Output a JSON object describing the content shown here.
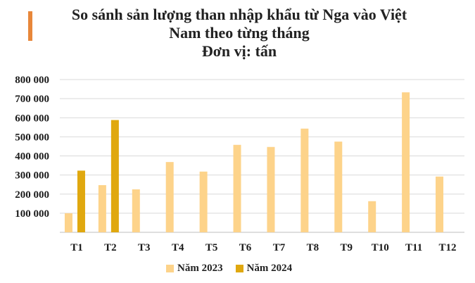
{
  "accent_color": "#E8873A",
  "chart_data": {
    "type": "bar",
    "title_lines": [
      "So sánh sản lượng than nhập khẩu từ Nga vào Việt",
      "Nam theo từng tháng",
      "Đơn vị: tấn"
    ],
    "categories": [
      "T1",
      "T2",
      "T3",
      "T4",
      "T5",
      "T6",
      "T7",
      "T8",
      "T9",
      "T10",
      "T11",
      "T12"
    ],
    "series": [
      {
        "name": "Năm 2023",
        "color": "#FDD38A",
        "values": [
          100000,
          247000,
          225000,
          368000,
          318000,
          458000,
          447000,
          543000,
          475000,
          163000,
          733000,
          292000
        ]
      },
      {
        "name": "Năm 2024",
        "color": "#E0A80F",
        "values": [
          323000,
          588000,
          null,
          null,
          null,
          null,
          null,
          null,
          null,
          null,
          null,
          null
        ]
      }
    ],
    "y_ticks": [
      "800 000",
      "700 000",
      "600 000",
      "500 000",
      "400 000",
      "300 000",
      "200 000",
      "100 000"
    ],
    "ylim": [
      0,
      800000
    ],
    "grid": true,
    "legend_position": "bottom"
  }
}
